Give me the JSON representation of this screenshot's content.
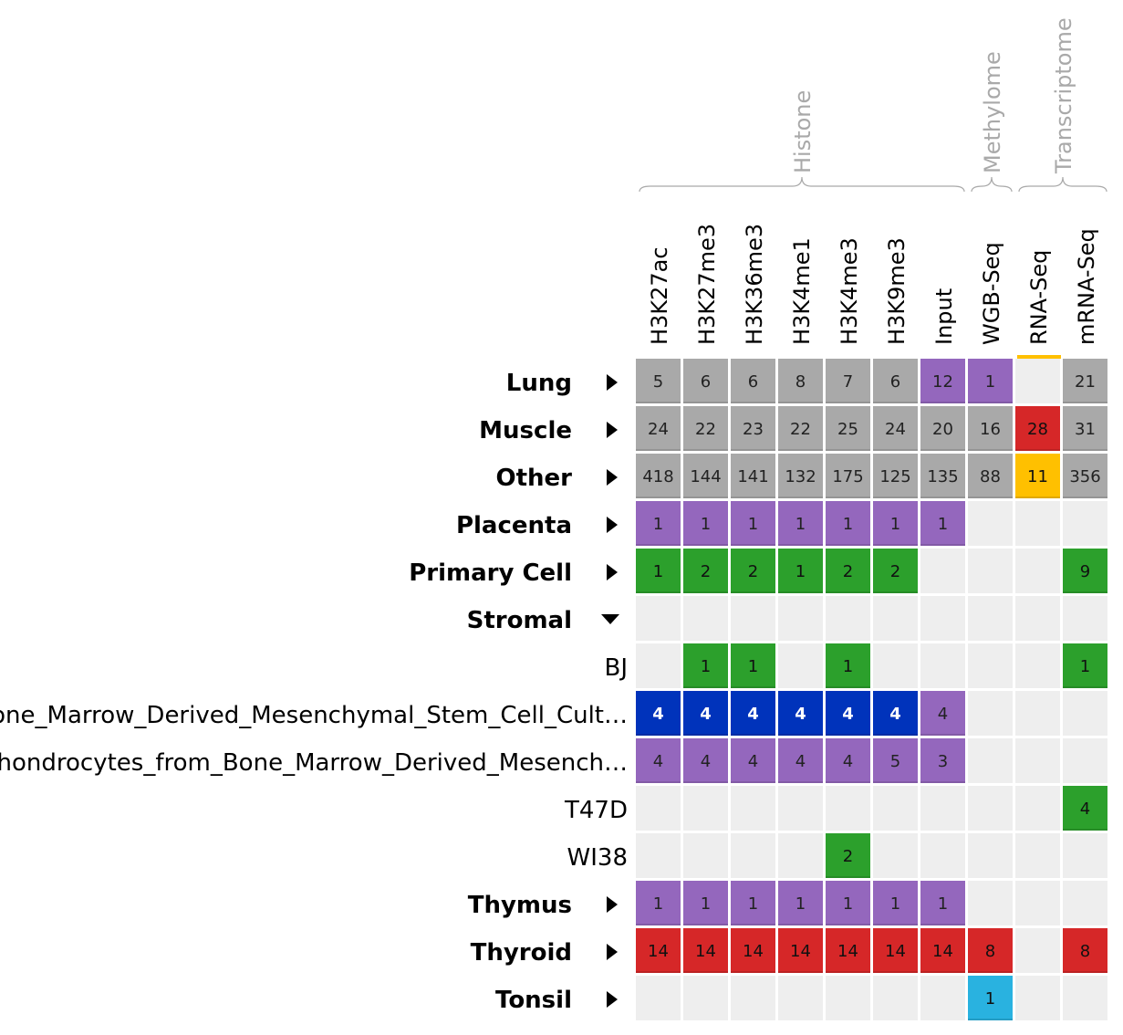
{
  "chart_data": {
    "type": "heatmap",
    "group_headers": [
      {
        "label": "Histone",
        "columns": [
          "H3K27ac",
          "H3K27me3",
          "H3K36me3",
          "H3K4me1",
          "H3K4me3",
          "H3K9me3",
          "Input"
        ]
      },
      {
        "label": "Methylome",
        "columns": [
          "WGB-Seq"
        ]
      },
      {
        "label": "Transcriptome",
        "columns": [
          "RNA-Seq",
          "mRNA-Seq"
        ]
      }
    ],
    "columns": [
      "H3K27ac",
      "H3K27me3",
      "H3K36me3",
      "H3K4me1",
      "H3K4me3",
      "H3K9me3",
      "Input",
      "WGB-Seq",
      "RNA-Seq",
      "mRNA-Seq"
    ],
    "colors": {
      "gray": "#a9a9a9",
      "purple": "#9467bd",
      "green": "#2ca02c",
      "blue": "#0033bb",
      "red": "#d62728",
      "yellow": "#ffc000",
      "cyan": "#29b2e0",
      "empty": "#eeeeee"
    },
    "rows": [
      {
        "label": "Lung",
        "bold": true,
        "toggle": "collapsed",
        "cells": [
          [
            5,
            "gray"
          ],
          [
            6,
            "gray"
          ],
          [
            6,
            "gray"
          ],
          [
            8,
            "gray"
          ],
          [
            7,
            "gray"
          ],
          [
            6,
            "gray"
          ],
          [
            12,
            "purple"
          ],
          [
            1,
            "purple"
          ],
          [
            null,
            "empty"
          ],
          [
            21,
            "gray"
          ]
        ]
      },
      {
        "label": "Muscle",
        "bold": true,
        "toggle": "collapsed",
        "cells": [
          [
            24,
            "gray"
          ],
          [
            22,
            "gray"
          ],
          [
            23,
            "gray"
          ],
          [
            22,
            "gray"
          ],
          [
            25,
            "gray"
          ],
          [
            24,
            "gray"
          ],
          [
            20,
            "gray"
          ],
          [
            16,
            "gray"
          ],
          [
            28,
            "red"
          ],
          [
            31,
            "gray"
          ]
        ]
      },
      {
        "label": "Other",
        "bold": true,
        "toggle": "collapsed",
        "cells": [
          [
            418,
            "gray"
          ],
          [
            144,
            "gray"
          ],
          [
            141,
            "gray"
          ],
          [
            132,
            "gray"
          ],
          [
            175,
            "gray"
          ],
          [
            125,
            "gray"
          ],
          [
            135,
            "gray"
          ],
          [
            88,
            "gray"
          ],
          [
            11,
            "yellow"
          ],
          [
            356,
            "gray"
          ]
        ]
      },
      {
        "label": "Placenta",
        "bold": true,
        "toggle": "collapsed",
        "cells": [
          [
            1,
            "purple"
          ],
          [
            1,
            "purple"
          ],
          [
            1,
            "purple"
          ],
          [
            1,
            "purple"
          ],
          [
            1,
            "purple"
          ],
          [
            1,
            "purple"
          ],
          [
            1,
            "purple"
          ],
          [
            null,
            "empty"
          ],
          [
            null,
            "empty"
          ],
          [
            null,
            "empty"
          ]
        ]
      },
      {
        "label": "Primary Cell",
        "bold": true,
        "toggle": "collapsed",
        "cells": [
          [
            1,
            "green"
          ],
          [
            2,
            "green"
          ],
          [
            2,
            "green"
          ],
          [
            1,
            "green"
          ],
          [
            2,
            "green"
          ],
          [
            2,
            "green"
          ],
          [
            null,
            "empty"
          ],
          [
            null,
            "empty"
          ],
          [
            null,
            "empty"
          ],
          [
            9,
            "green"
          ]
        ]
      },
      {
        "label": "Stromal",
        "bold": true,
        "toggle": "expanded",
        "cells": [
          [
            null,
            "empty"
          ],
          [
            null,
            "empty"
          ],
          [
            null,
            "empty"
          ],
          [
            null,
            "empty"
          ],
          [
            null,
            "empty"
          ],
          [
            null,
            "empty"
          ],
          [
            null,
            "empty"
          ],
          [
            null,
            "empty"
          ],
          [
            null,
            "empty"
          ],
          [
            null,
            "empty"
          ]
        ]
      },
      {
        "label": "BJ",
        "bold": false,
        "toggle": "",
        "cells": [
          [
            null,
            "empty"
          ],
          [
            1,
            "green"
          ],
          [
            1,
            "green"
          ],
          [
            null,
            "empty"
          ],
          [
            1,
            "green"
          ],
          [
            null,
            "empty"
          ],
          [
            null,
            "empty"
          ],
          [
            null,
            "empty"
          ],
          [
            null,
            "empty"
          ],
          [
            1,
            "green"
          ]
        ]
      },
      {
        "label": "Bone_Marrow_Derived_Mesenchymal_Stem_Cell_Cult…",
        "bold": false,
        "toggle": "",
        "cells": [
          [
            4,
            "blue"
          ],
          [
            4,
            "blue"
          ],
          [
            4,
            "blue"
          ],
          [
            4,
            "blue"
          ],
          [
            4,
            "blue"
          ],
          [
            4,
            "blue"
          ],
          [
            4,
            "purple"
          ],
          [
            null,
            "empty"
          ],
          [
            null,
            "empty"
          ],
          [
            null,
            "empty"
          ]
        ]
      },
      {
        "label": "Chondrocytes_from_Bone_Marrow_Derived_Mesench…",
        "bold": false,
        "toggle": "",
        "cells": [
          [
            4,
            "purple"
          ],
          [
            4,
            "purple"
          ],
          [
            4,
            "purple"
          ],
          [
            4,
            "purple"
          ],
          [
            4,
            "purple"
          ],
          [
            5,
            "purple"
          ],
          [
            3,
            "purple"
          ],
          [
            null,
            "empty"
          ],
          [
            null,
            "empty"
          ],
          [
            null,
            "empty"
          ]
        ]
      },
      {
        "label": "T47D",
        "bold": false,
        "toggle": "",
        "cells": [
          [
            null,
            "empty"
          ],
          [
            null,
            "empty"
          ],
          [
            null,
            "empty"
          ],
          [
            null,
            "empty"
          ],
          [
            null,
            "empty"
          ],
          [
            null,
            "empty"
          ],
          [
            null,
            "empty"
          ],
          [
            null,
            "empty"
          ],
          [
            null,
            "empty"
          ],
          [
            4,
            "green"
          ]
        ]
      },
      {
        "label": "WI38",
        "bold": false,
        "toggle": "",
        "cells": [
          [
            null,
            "empty"
          ],
          [
            null,
            "empty"
          ],
          [
            null,
            "empty"
          ],
          [
            null,
            "empty"
          ],
          [
            2,
            "green"
          ],
          [
            null,
            "empty"
          ],
          [
            null,
            "empty"
          ],
          [
            null,
            "empty"
          ],
          [
            null,
            "empty"
          ],
          [
            null,
            "empty"
          ]
        ]
      },
      {
        "label": "Thymus",
        "bold": true,
        "toggle": "collapsed",
        "cells": [
          [
            1,
            "purple"
          ],
          [
            1,
            "purple"
          ],
          [
            1,
            "purple"
          ],
          [
            1,
            "purple"
          ],
          [
            1,
            "purple"
          ],
          [
            1,
            "purple"
          ],
          [
            1,
            "purple"
          ],
          [
            null,
            "empty"
          ],
          [
            null,
            "empty"
          ],
          [
            null,
            "empty"
          ]
        ]
      },
      {
        "label": "Thyroid",
        "bold": true,
        "toggle": "collapsed",
        "cells": [
          [
            14,
            "red"
          ],
          [
            14,
            "red"
          ],
          [
            14,
            "red"
          ],
          [
            14,
            "red"
          ],
          [
            14,
            "red"
          ],
          [
            14,
            "red"
          ],
          [
            14,
            "red"
          ],
          [
            8,
            "red"
          ],
          [
            null,
            "empty"
          ],
          [
            8,
            "red"
          ]
        ]
      },
      {
        "label": "Tonsil",
        "bold": true,
        "toggle": "collapsed",
        "cells": [
          [
            null,
            "empty"
          ],
          [
            null,
            "empty"
          ],
          [
            null,
            "empty"
          ],
          [
            null,
            "empty"
          ],
          [
            null,
            "empty"
          ],
          [
            null,
            "empty"
          ],
          [
            null,
            "empty"
          ],
          [
            1,
            "cyan"
          ],
          [
            null,
            "empty"
          ],
          [
            null,
            "empty"
          ]
        ]
      }
    ],
    "top_markers": [
      {
        "column": "RNA-Seq",
        "color": "yellow"
      }
    ]
  }
}
